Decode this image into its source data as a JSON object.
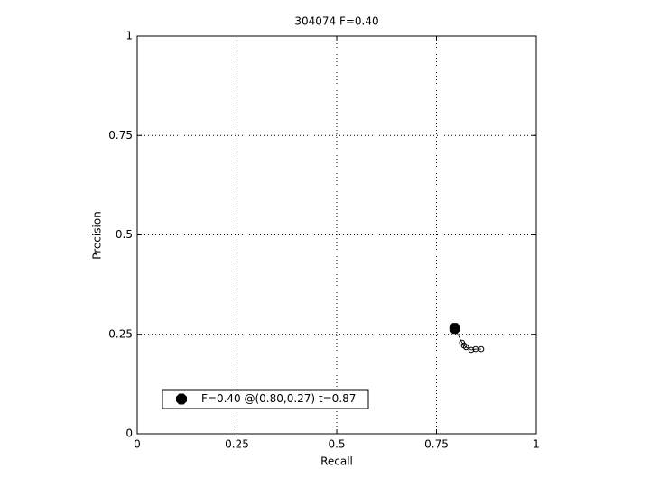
{
  "chart_data": {
    "type": "line",
    "title": "304074 F=0.40",
    "x_label": "Recall",
    "y_label": "Precision",
    "series": [
      {
        "x": [
          0.796,
          0.814,
          0.819,
          0.824,
          0.837,
          0.848,
          0.862
        ],
        "values": [
          0.265,
          0.229,
          0.222,
          0.218,
          0.211,
          0.213,
          0.213
        ],
        "color": "#000000",
        "marker": "open-circle"
      },
      {
        "name": "F=0.40 @(0.80,0.27) t=0.87",
        "x": [
          0.796
        ],
        "values": [
          0.265
        ],
        "color": "#000000",
        "marker": "filled-octagon"
      }
    ],
    "xlim": [
      0,
      1
    ],
    "xticks": [
      0,
      0.25,
      0.5,
      0.75,
      1
    ],
    "ylim": [
      0,
      1
    ],
    "yticks": [
      0,
      0.25,
      0.5,
      0.75,
      1
    ],
    "grid": true,
    "legend": "lower left"
  }
}
